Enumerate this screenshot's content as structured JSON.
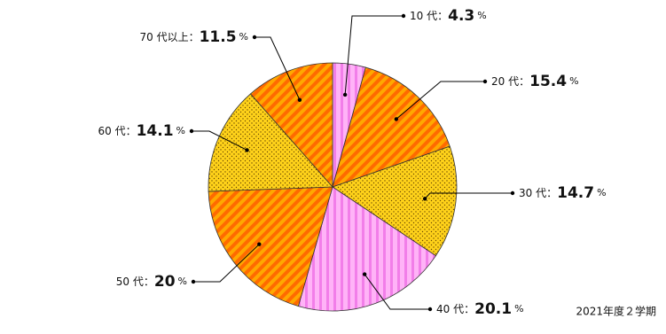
{
  "chart_data": {
    "type": "pie",
    "categories": [
      "10 代",
      "20 代",
      "30 代",
      "40 代",
      "50 代",
      "60 代",
      "70 代以上"
    ],
    "values": [
      4.3,
      15.4,
      14.7,
      20.1,
      20,
      14.1,
      11.5
    ],
    "colors": [
      "#ffb3f7",
      "#ff6a00",
      "#ffd21a",
      "#ffb3f7",
      "#ff6a00",
      "#ffd21a",
      "#ff6a00"
    ],
    "patterns": [
      "vertical-stripes",
      "diagonal-stripes",
      "dots",
      "vertical-stripes",
      "diagonal-stripes",
      "dots",
      "diagonal-stripes"
    ],
    "separator": "：",
    "unit": "%",
    "note": "2021年度２学期"
  }
}
